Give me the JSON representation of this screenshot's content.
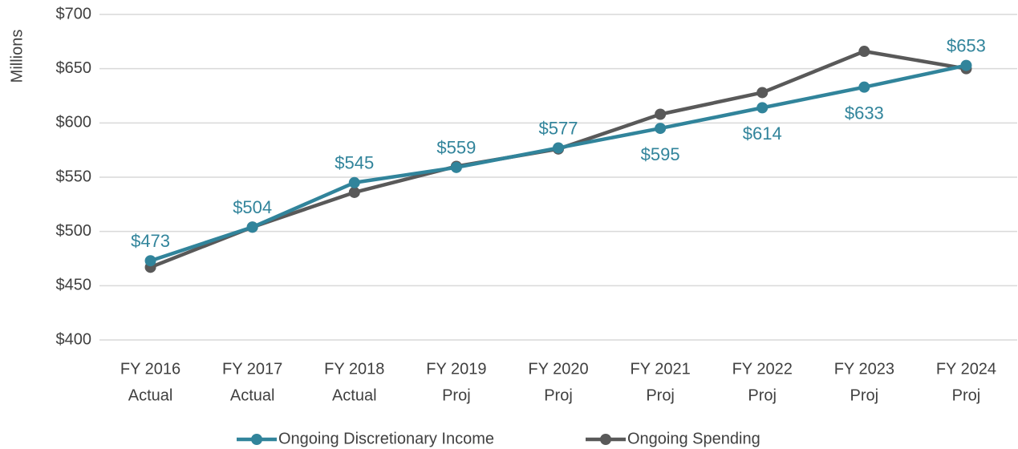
{
  "chart_data": {
    "type": "line",
    "y_axis_label": "Millions",
    "categories": [
      [
        "FY 2016",
        "Actual"
      ],
      [
        "FY 2017",
        "Actual"
      ],
      [
        "FY 2018",
        "Actual"
      ],
      [
        "FY 2019",
        "Proj"
      ],
      [
        "FY 2020",
        "Proj"
      ],
      [
        "FY 2021",
        "Proj"
      ],
      [
        "FY 2022",
        "Proj"
      ],
      [
        "FY 2023",
        "Proj"
      ],
      [
        "FY 2024",
        "Proj"
      ]
    ],
    "series": [
      {
        "name": "Ongoing Discretionary Income",
        "color": "#31849b",
        "values": [
          473,
          504,
          545,
          559,
          577,
          595,
          614,
          633,
          653
        ],
        "value_labels": [
          "$473",
          "$504",
          "$545",
          "$559",
          "$577",
          "$595",
          "$614",
          "$633",
          "$653"
        ]
      },
      {
        "name": "Ongoing Spending",
        "color": "#595959",
        "values": [
          467,
          504,
          536,
          560,
          576,
          608,
          628,
          666,
          650
        ]
      }
    ],
    "ylim": [
      400,
      700
    ],
    "yticks": [
      {
        "value": 400,
        "label": "$400"
      },
      {
        "value": 450,
        "label": "$450"
      },
      {
        "value": 500,
        "label": "$500"
      },
      {
        "value": 550,
        "label": "$550"
      },
      {
        "value": 600,
        "label": "$600"
      },
      {
        "value": 650,
        "label": "$650"
      },
      {
        "value": 700,
        "label": "$700"
      }
    ],
    "grid": true,
    "legend": "bottom"
  }
}
